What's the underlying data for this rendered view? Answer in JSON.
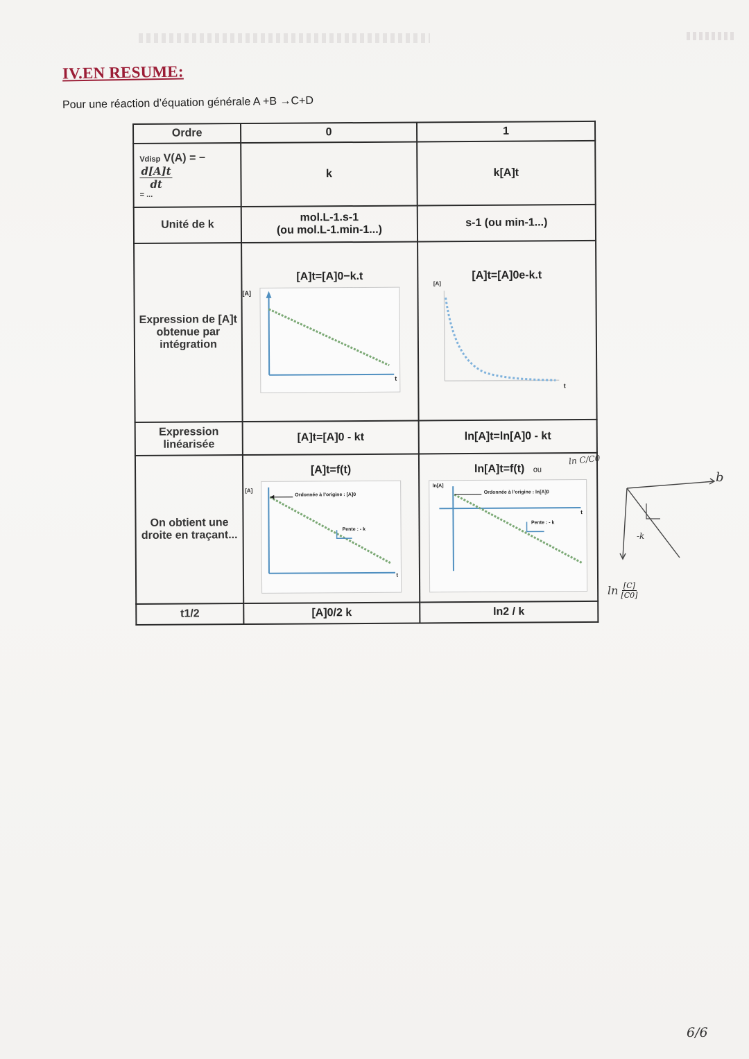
{
  "heading": "IV.EN RESUME:",
  "intro": "Pour une réaction d’équation générale A +B →C+D",
  "table": {
    "order_header": "Ordre",
    "order_0": "0",
    "order_1": "1",
    "speed_label": "V(A) =",
    "speed_prefix": "Vdisp",
    "speed_numerator": "d[A]t",
    "speed_denominator": "dt",
    "speed_dots": "= ...",
    "speed_0": "k",
    "speed_1": "k[A]t",
    "unit_label": "Unité de k",
    "unit_0_line1": "mol.L-1.s-1",
    "unit_0_line2": "(ou mol.L-1.min-1...)",
    "unit_1": "s-1 (ou min-1...)",
    "expr_label": "Expression de [A]t obtenue par intégration",
    "expr_0": "[A]t=[A]0−k.t",
    "expr_1": "[A]t=[A]0e-k.t",
    "lin_label": "Expression linéarisée",
    "lin_0": "[A]t=[A]0 - kt",
    "lin_1": "ln[A]t=ln[A]0 - kt",
    "plot_label": "On obtient une droite en traçant...",
    "plot_0": "[A]t=f(t)",
    "plot_1": "ln[A]t=f(t)",
    "plot_1_note": "ou",
    "intercept_0": "Ordonnée à l’origine : [A]0",
    "intercept_1": "Ordonnée à l’origine : ln[A]0",
    "slope_0": "Pente : - k",
    "slope_1": "Pente : - k",
    "axis_A": "[A]",
    "axis_lnA": "ln[A]",
    "axis_t": "t",
    "half_label": "t1/2",
    "half_0": "[A]0/2 k",
    "half_1": "ln2 / k"
  },
  "handwritten": {
    "top_right": "ln C/C0",
    "minus_k": "-k",
    "b_letter": "b",
    "ln_label": "ln",
    "ln_num": "[C]",
    "ln_den": "[C0]"
  },
  "page_number": "6/6"
}
